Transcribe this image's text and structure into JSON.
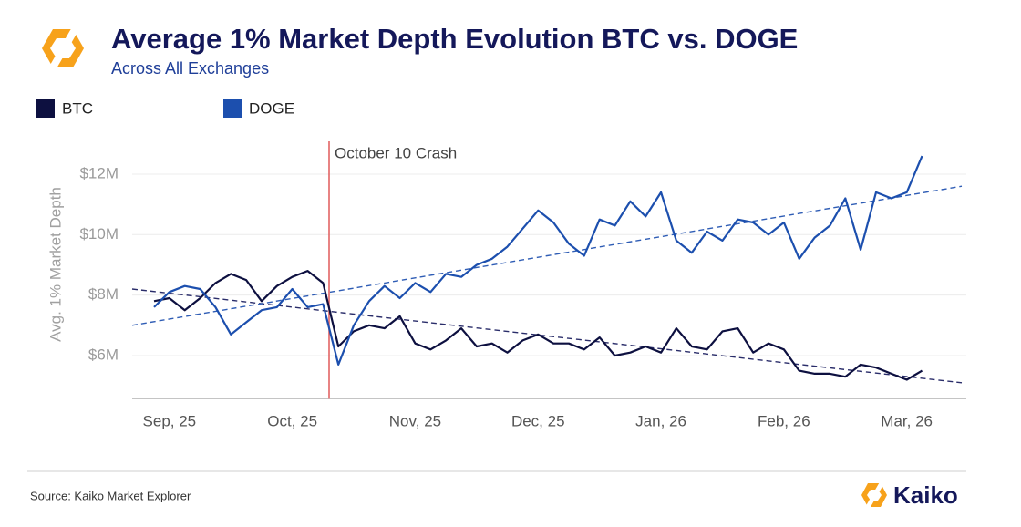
{
  "chart_data": {
    "type": "line",
    "title": "Average 1% Market Depth Evolution BTC vs. DOGE",
    "subtitle": "Across All Exchanges",
    "y_label": "Avg. 1% Market Depth",
    "annotation": "October 10 Crash",
    "source": "Source: Kaiko Market Explorer",
    "brand": "Kaiko",
    "categories": [
      null,
      "Sep, 25",
      null,
      null,
      null,
      null,
      null,
      null,
      null,
      "Oct, 25",
      null,
      null,
      null,
      null,
      null,
      null,
      null,
      "Nov, 25",
      null,
      null,
      null,
      null,
      null,
      null,
      null,
      "Dec, 25",
      null,
      null,
      null,
      null,
      null,
      null,
      null,
      "Jan, 26",
      null,
      null,
      null,
      null,
      null,
      null,
      null,
      "Feb, 26",
      null,
      null,
      null,
      null,
      null,
      null,
      null,
      "Mar, 26",
      null
    ],
    "series": [
      {
        "name": "BTC",
        "color": "#0d1040",
        "values": [
          7800000,
          7900000,
          7500000,
          7900000,
          8400000,
          8700000,
          8500000,
          7800000,
          8300000,
          8600000,
          8800000,
          8400000,
          6300000,
          6800000,
          7000000,
          6900000,
          7300000,
          6400000,
          6200000,
          6500000,
          6900000,
          6300000,
          6400000,
          6100000,
          6500000,
          6700000,
          6400000,
          6400000,
          6200000,
          6600000,
          6000000,
          6100000,
          6300000,
          6100000,
          6900000,
          6300000,
          6200000,
          6800000,
          6900000,
          6100000,
          6400000,
          6200000,
          5500000,
          5400000,
          5400000,
          5300000,
          5700000,
          5600000,
          5400000,
          5200000,
          5500000
        ]
      },
      {
        "name": "DOGE",
        "color": "#1c4fae",
        "values": [
          7600000,
          8100000,
          8300000,
          8200000,
          7600000,
          6700000,
          7100000,
          7500000,
          7600000,
          8200000,
          7600000,
          7700000,
          5700000,
          7000000,
          7800000,
          8300000,
          7900000,
          8400000,
          8100000,
          8700000,
          8600000,
          9000000,
          9200000,
          9600000,
          10200000,
          10800000,
          10400000,
          9700000,
          9300000,
          10500000,
          10300000,
          11100000,
          10600000,
          11400000,
          9800000,
          9400000,
          10100000,
          9800000,
          10500000,
          10400000,
          10000000,
          10400000,
          9200000,
          9900000,
          10300000,
          11200000,
          9500000,
          11400000,
          11200000,
          11400000,
          12600000
        ]
      }
    ],
    "trend_lines": [
      {
        "color": "#2a2d6a",
        "values": [
          8200000,
          5100000
        ]
      },
      {
        "color": "#2f5db5",
        "values": [
          7000000,
          11600000
        ]
      }
    ],
    "ylim": [
      4600000,
      13100000
    ],
    "yticks": [
      {
        "value": 6000000,
        "label": "$6M"
      },
      {
        "value": 8000000,
        "label": "$8M"
      },
      {
        "value": 10000000,
        "label": "$10M"
      },
      {
        "value": 12000000,
        "label": "$12M"
      }
    ],
    "grid": true
  }
}
